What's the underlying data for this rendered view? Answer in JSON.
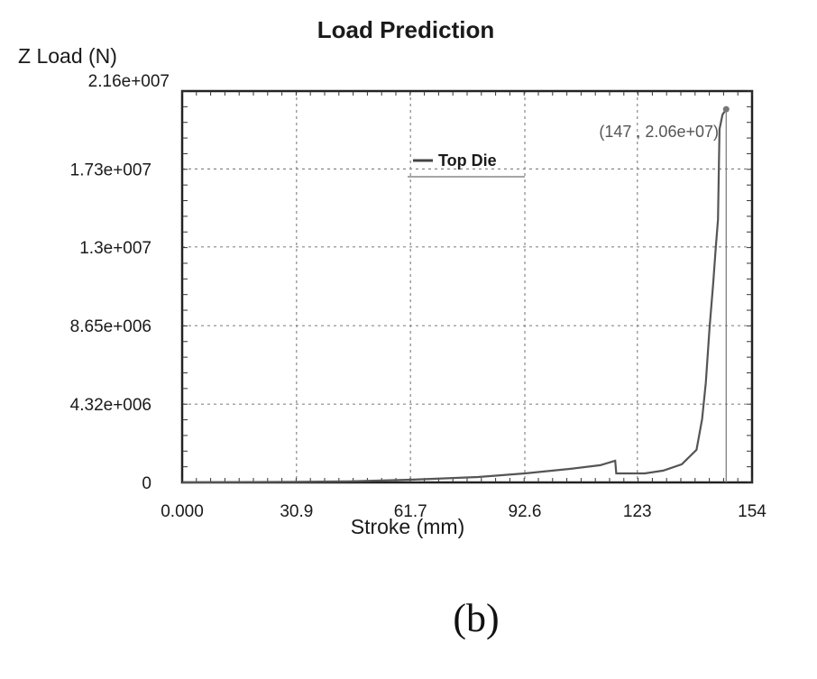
{
  "chart_data": {
    "type": "line",
    "title": "Load Prediction",
    "ylabel": "Z Load (N)",
    "xlabel": "Stroke (mm)",
    "xlim": [
      0,
      154
    ],
    "ylim": [
      0,
      21600000
    ],
    "x_ticks": [
      0,
      30.9,
      61.7,
      92.6,
      123,
      154
    ],
    "x_tick_labels": [
      "0.000",
      "30.9",
      "61.7",
      "92.6",
      "123",
      "154"
    ],
    "y_ticks": [
      0,
      4320000,
      8650000,
      13000000,
      17300000,
      21600000
    ],
    "y_tick_labels": [
      "0",
      "4.32e+006",
      "8.65e+006",
      "1.3e+007",
      "1.73e+007",
      "2.16e+007"
    ],
    "grid": true,
    "legend": {
      "position": "top-center",
      "entries": [
        "Top Die"
      ]
    },
    "series": [
      {
        "name": "Top Die",
        "color": "#555555",
        "points": [
          [
            0,
            0
          ],
          [
            30.9,
            30000
          ],
          [
            45,
            60000
          ],
          [
            61.7,
            150000
          ],
          [
            80,
            300000
          ],
          [
            92.6,
            500000
          ],
          [
            105,
            750000
          ],
          [
            113,
            950000
          ],
          [
            117,
            1200000
          ],
          [
            117.3,
            500000
          ],
          [
            125,
            500000
          ],
          [
            130,
            650000
          ],
          [
            135,
            1000000
          ],
          [
            139,
            1800000
          ],
          [
            140.5,
            3500000
          ],
          [
            141.5,
            5500000
          ],
          [
            142.5,
            8500000
          ],
          [
            143.5,
            11000000
          ],
          [
            144.2,
            13000000
          ],
          [
            144.8,
            14500000
          ],
          [
            145.2,
            19500000
          ],
          [
            146,
            20300000
          ],
          [
            147,
            20600000
          ]
        ]
      }
    ],
    "annotation": {
      "x": 147,
      "y": 20600000,
      "text": "(147 , 2.06e+07)"
    }
  },
  "caption": "(b)"
}
